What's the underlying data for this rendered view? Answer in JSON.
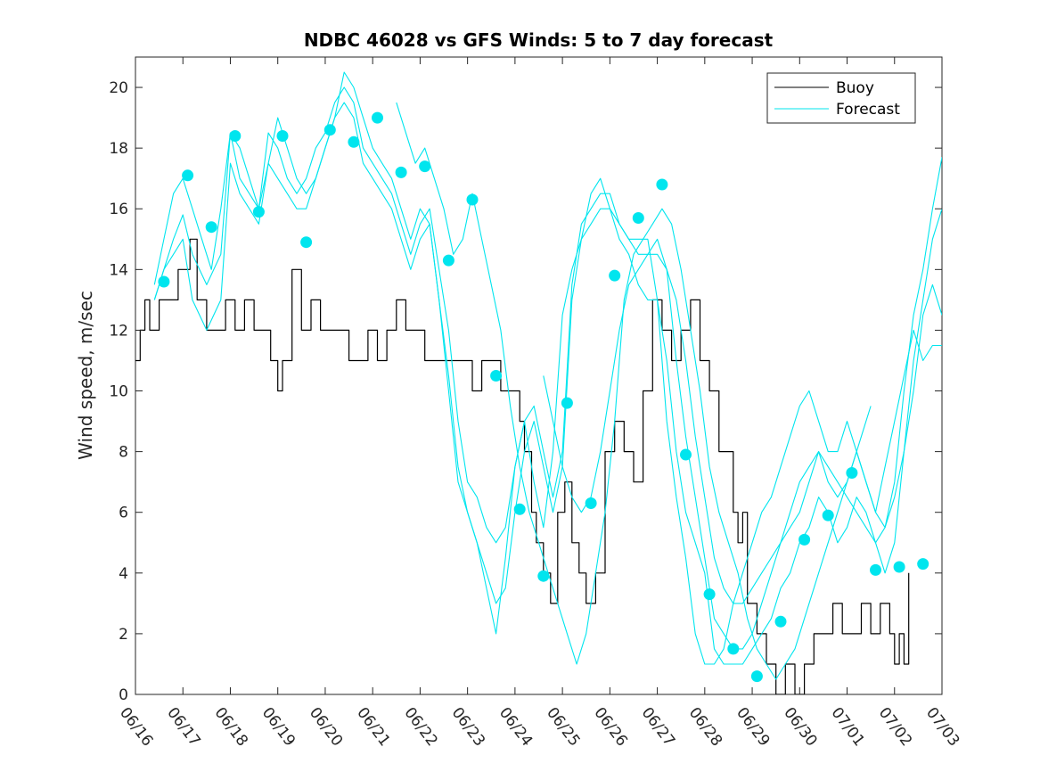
{
  "chart_data": {
    "type": "line",
    "title": "NDBC 46028 vs GFS Winds: 5 to 7 day forecast",
    "xlabel": "",
    "ylabel": "Wind speed, m/sec",
    "xlim": [
      0,
      17
    ],
    "ylim": [
      0,
      21
    ],
    "x_tick_labels": [
      "06/16",
      "06/17",
      "06/18",
      "06/19",
      "06/20",
      "06/21",
      "06/22",
      "06/23",
      "06/24",
      "06/25",
      "06/26",
      "06/27",
      "06/28",
      "06/29",
      "06/30",
      "07/01",
      "07/02",
      "07/03"
    ],
    "y_ticks": [
      0,
      2,
      4,
      6,
      8,
      10,
      12,
      14,
      16,
      18,
      20
    ],
    "y_tick_labels": [
      "0",
      "2",
      "4",
      "6",
      "8",
      "10",
      "12",
      "14",
      "16",
      "18",
      "20"
    ],
    "grid": false,
    "legend": {
      "position": "top-right",
      "entries": [
        {
          "label": "Buoy",
          "color": "#000000"
        },
        {
          "label": "Forecast",
          "color": "#00e5ee"
        }
      ]
    },
    "colors": {
      "buoy": "#000000",
      "forecast": "#00e5ee",
      "markers": "#00e5ee"
    },
    "series": [
      {
        "name": "Buoy",
        "x": [
          0.0,
          0.1,
          0.2,
          0.3,
          0.5,
          0.7,
          0.9,
          1.05,
          1.15,
          1.3,
          1.5,
          1.7,
          1.9,
          2.1,
          2.3,
          2.5,
          2.7,
          2.85,
          3.0,
          3.1,
          3.3,
          3.5,
          3.7,
          3.9,
          4.1,
          4.3,
          4.5,
          4.7,
          4.9,
          5.1,
          5.3,
          5.5,
          5.7,
          5.9,
          6.1,
          6.3,
          6.5,
          6.7,
          6.9,
          7.1,
          7.3,
          7.5,
          7.7,
          7.9,
          8.1,
          8.2,
          8.35,
          8.45,
          8.6,
          8.75,
          8.9,
          9.05,
          9.2,
          9.35,
          9.5,
          9.7,
          9.9,
          10.1,
          10.3,
          10.5,
          10.7,
          10.9,
          11.1,
          11.3,
          11.5,
          11.7,
          11.9,
          12.1,
          12.3,
          12.5,
          12.6,
          12.7,
          12.8,
          12.9,
          13.1,
          13.3,
          13.5,
          13.7,
          13.9,
          14.1,
          14.3,
          14.5,
          14.7,
          14.9,
          15.1,
          15.3,
          15.5,
          15.7,
          15.9,
          16.0,
          16.1,
          16.2,
          16.3
        ],
        "y": [
          11,
          12,
          13,
          12,
          13,
          13,
          14,
          14,
          15,
          13,
          12,
          12,
          13,
          12,
          13,
          12,
          12,
          11,
          10,
          11,
          14,
          12,
          13,
          12,
          12,
          12,
          11,
          11,
          12,
          11,
          12,
          13,
          12,
          12,
          11,
          11,
          11,
          11,
          11,
          10,
          11,
          11,
          10,
          10,
          9,
          8,
          6,
          5,
          4,
          3,
          6,
          7,
          5,
          4,
          3,
          4,
          8,
          9,
          8,
          7,
          10,
          13,
          12,
          11,
          12,
          13,
          11,
          10,
          8,
          8,
          6,
          5,
          6,
          3,
          2,
          1,
          0,
          1,
          0,
          1,
          2,
          2,
          3,
          2,
          2,
          3,
          2,
          3,
          2,
          1,
          2,
          1,
          4
        ]
      },
      {
        "name": "",
        "x": [
          0.4,
          0.6,
          0.8,
          1.0,
          1.2,
          1.5,
          1.8,
          2.0,
          2.2,
          2.4,
          2.6,
          2.8,
          3.0,
          3.2,
          3.4,
          3.6,
          3.8,
          4.0,
          4.2,
          4.4,
          4.6,
          4.8,
          5.0,
          5.2,
          5.4,
          5.6,
          5.8,
          6.0,
          6.2,
          6.4,
          6.6,
          6.8,
          7.0,
          7.2,
          7.4,
          7.6,
          7.8,
          8.0,
          8.2,
          8.4,
          8.6,
          8.8,
          9.0,
          9.2,
          9.4,
          9.6,
          9.8,
          10.0,
          10.2,
          10.4,
          10.6,
          10.8,
          11.0,
          11.2,
          11.4,
          11.6,
          11.8,
          12.0,
          12.2,
          12.4,
          12.6,
          12.8,
          13.0,
          13.2,
          13.4,
          13.6,
          13.8,
          14.0,
          14.2,
          14.4,
          14.6,
          14.8,
          15.0,
          15.2,
          15.4,
          15.6,
          15.8,
          16.0,
          16.2,
          16.4,
          16.6,
          16.8,
          17.0
        ],
        "y": [
          13.0,
          14.0,
          15.0,
          15.8,
          14.5,
          13.5,
          14.5,
          18.5,
          17.0,
          16.5,
          16.0,
          18.5,
          18.0,
          17.0,
          16.5,
          17.0,
          18.0,
          18.5,
          19.5,
          20.0,
          19.5,
          18.0,
          17.5,
          17.0,
          16.5,
          15.5,
          14.5,
          15.5,
          16.0,
          14.0,
          12.0,
          9.0,
          7.0,
          6.5,
          5.5,
          5.0,
          5.5,
          7.5,
          9.0,
          9.5,
          8.0,
          6.5,
          8.0,
          13.5,
          15.5,
          16.0,
          16.5,
          16.5,
          15.5,
          15.0,
          14.5,
          14.5,
          15.0,
          14.0,
          11.0,
          8.5,
          6.5,
          4.5,
          2.5,
          2.0,
          1.5,
          1.5,
          2.0,
          3.0,
          4.0,
          5.0,
          5.5,
          6.0,
          7.0,
          8.0,
          7.0,
          6.5,
          7.0,
          8.0,
          7.0,
          6.0,
          5.5,
          7.0,
          10.0,
          12.5,
          14.0,
          16.0,
          17.7
        ]
      },
      {
        "name": "",
        "x": [
          0.4,
          0.6,
          0.8,
          1.0,
          1.2,
          1.5,
          1.8,
          2.0,
          2.2,
          2.4,
          2.6,
          2.8,
          3.0,
          3.2,
          3.4,
          3.6,
          3.8,
          4.0,
          4.2,
          4.4,
          4.6,
          4.8,
          5.0,
          5.2,
          5.4,
          5.6,
          5.8,
          6.0,
          6.2,
          6.4,
          6.6,
          6.8,
          7.0,
          7.2,
          7.4,
          7.6,
          7.8,
          8.0,
          8.2,
          8.4,
          8.6,
          8.8,
          9.0,
          9.2,
          9.4,
          9.6,
          9.8,
          10.0,
          10.2,
          10.4,
          10.6,
          10.8,
          11.0,
          11.2,
          11.4,
          11.6,
          11.8,
          12.0,
          12.2,
          12.4,
          12.6,
          12.8,
          13.0,
          13.2,
          13.4,
          13.6,
          13.8,
          14.0,
          14.2,
          14.4,
          14.6,
          14.8,
          15.0,
          15.2,
          15.4,
          15.6,
          15.8,
          16.0,
          16.2,
          16.4,
          16.6,
          16.8,
          17.0
        ],
        "y": [
          13.0,
          14.0,
          14.5,
          15.0,
          13.0,
          12.0,
          13.0,
          17.5,
          16.5,
          16.0,
          15.5,
          17.5,
          17.0,
          16.5,
          16.0,
          16.0,
          17.0,
          18.0,
          19.0,
          19.5,
          19.0,
          17.5,
          17.0,
          16.5,
          16.0,
          15.0,
          14.0,
          15.0,
          15.5,
          13.0,
          10.5,
          7.5,
          6.0,
          5.0,
          4.0,
          3.0,
          3.5,
          6.0,
          8.0,
          9.0,
          7.5,
          6.0,
          7.5,
          13.0,
          15.0,
          15.5,
          16.0,
          16.0,
          15.0,
          14.5,
          13.5,
          13.0,
          13.0,
          11.0,
          8.0,
          6.0,
          5.0,
          4.0,
          1.5,
          1.0,
          1.0,
          1.0,
          1.5,
          2.0,
          2.5,
          3.5,
          4.0,
          5.0,
          5.5,
          6.5,
          6.0,
          5.0,
          5.5,
          6.5,
          6.0,
          5.0,
          4.0,
          5.0,
          8.0,
          11.0,
          13.0,
          15.0,
          16.0
        ]
      },
      {
        "name": "",
        "x": [
          5.5,
          5.7,
          5.9,
          6.1,
          6.3,
          6.5,
          6.7,
          6.9,
          7.1,
          7.3,
          7.5,
          7.7,
          7.9,
          8.1,
          8.3,
          8.5,
          8.7,
          8.9,
          9.1,
          9.3,
          9.5,
          9.7,
          9.9,
          10.1,
          10.3,
          10.5,
          10.7,
          10.9,
          11.1,
          11.3,
          11.5,
          11.7,
          11.9,
          12.1,
          12.3,
          12.5,
          12.7,
          12.9,
          13.1,
          13.3,
          13.5,
          13.7,
          13.9,
          14.1,
          14.3,
          14.5,
          14.7,
          14.9,
          15.1,
          15.3,
          15.5
        ],
        "y": [
          19.5,
          18.5,
          17.5,
          18.0,
          17.0,
          16.0,
          14.5,
          15.0,
          16.5,
          15.0,
          13.5,
          12.0,
          9.5,
          7.5,
          6.0,
          5.0,
          4.0,
          3.0,
          2.0,
          1.0,
          2.0,
          4.0,
          6.0,
          9.0,
          13.0,
          14.5,
          15.0,
          15.5,
          16.0,
          15.5,
          14.0,
          12.0,
          10.0,
          7.5,
          6.0,
          5.0,
          4.0,
          2.5,
          1.5,
          1.0,
          0.5,
          1.0,
          1.5,
          2.5,
          3.5,
          4.5,
          5.5,
          6.5,
          7.5,
          8.5,
          9.5
        ]
      },
      {
        "name": "",
        "x": [
          0.4,
          0.6,
          0.8,
          1.0,
          1.2,
          1.4,
          1.6,
          1.8,
          2.0,
          2.2,
          2.4,
          2.6,
          2.8,
          3.0,
          3.2,
          3.4,
          3.6,
          3.8,
          4.0,
          4.2,
          4.4,
          4.6,
          4.8,
          5.0,
          5.2,
          5.4,
          5.6,
          5.8,
          6.0,
          6.2,
          6.4,
          6.6,
          6.8,
          7.0,
          7.2,
          7.4,
          7.6,
          7.8,
          8.0,
          8.2,
          8.4,
          8.6,
          8.8,
          9.0,
          9.2,
          9.4,
          9.6,
          9.8,
          10.0,
          10.2,
          10.4,
          10.6,
          10.8,
          11.0,
          11.2,
          11.4,
          11.6,
          11.8,
          12.0,
          12.2,
          12.4,
          12.6,
          12.8,
          13.0,
          13.2,
          13.4,
          13.6,
          13.8,
          14.0,
          14.2,
          14.4,
          14.6,
          14.8,
          15.0,
          15.2,
          15.4,
          15.6,
          15.8,
          16.0,
          16.2,
          16.4,
          16.6,
          16.8,
          17.0
        ],
        "y": [
          13.5,
          15.0,
          16.5,
          17.0,
          16.0,
          15.0,
          14.0,
          16.0,
          18.5,
          18.0,
          17.0,
          16.0,
          17.5,
          19.0,
          18.0,
          17.0,
          16.5,
          17.0,
          18.0,
          19.0,
          20.5,
          20.0,
          19.0,
          18.0,
          17.5,
          17.0,
          16.0,
          15.0,
          16.0,
          15.5,
          13.0,
          10.0,
          7.0,
          6.0,
          5.0,
          3.5,
          2.0,
          4.5,
          7.5,
          9.0,
          7.0,
          5.5,
          8.0,
          12.5,
          14.0,
          15.0,
          16.5,
          17.0,
          16.0,
          15.5,
          15.0,
          15.0,
          15.0,
          13.0,
          9.0,
          6.5,
          4.5,
          2.0,
          1.0,
          1.0,
          1.5,
          3.0,
          4.0,
          5.0,
          6.0,
          6.5,
          7.5,
          8.5,
          9.5,
          10.0,
          9.0,
          8.0,
          8.0,
          9.0,
          8.0,
          7.0,
          6.0,
          7.5,
          9.0,
          10.5,
          12.0,
          11.0,
          11.5,
          11.5
        ]
      },
      {
        "name": "",
        "x": [
          8.6,
          8.8,
          9.0,
          9.2,
          9.4,
          9.6,
          9.8,
          10.0,
          10.2,
          10.4,
          10.6,
          10.8,
          11.0,
          11.2,
          11.4,
          11.6,
          11.8,
          12.0,
          12.2,
          12.4,
          12.6,
          12.8,
          13.0,
          13.2,
          13.4,
          13.6,
          13.8,
          14.0,
          14.2,
          14.4,
          14.6,
          14.8,
          15.0,
          15.2,
          15.4,
          15.6,
          15.8,
          16.0,
          16.2,
          16.4,
          16.6,
          16.8,
          17.0
        ],
        "y": [
          10.5,
          9.0,
          7.5,
          6.5,
          6.0,
          6.5,
          8.0,
          10.0,
          12.0,
          13.5,
          14.0,
          14.5,
          14.5,
          14.0,
          13.0,
          11.0,
          8.5,
          6.5,
          4.5,
          3.5,
          3.0,
          3.0,
          3.5,
          4.0,
          4.5,
          5.0,
          6.0,
          7.0,
          7.5,
          8.0,
          7.5,
          7.0,
          6.5,
          6.0,
          5.5,
          5.0,
          5.5,
          6.5,
          8.0,
          10.0,
          12.5,
          13.5,
          12.5
        ]
      }
    ],
    "markers": {
      "x": [
        0.6,
        1.1,
        1.6,
        2.1,
        2.6,
        3.1,
        3.6,
        4.1,
        4.6,
        5.1,
        5.6,
        6.1,
        6.6,
        7.1,
        7.6,
        8.1,
        8.6,
        9.1,
        9.6,
        10.1,
        10.6,
        11.1,
        11.6,
        12.1,
        12.6,
        13.1,
        13.6,
        14.1,
        14.6,
        15.1,
        15.6,
        16.1,
        16.6
      ],
      "y": [
        13.6,
        17.1,
        15.4,
        18.4,
        15.9,
        18.4,
        14.9,
        18.6,
        18.2,
        19.0,
        17.2,
        17.4,
        14.3,
        16.3,
        10.5,
        6.1,
        3.9,
        9.6,
        6.3,
        13.8,
        15.7,
        16.8,
        7.9,
        3.3,
        1.5,
        0.6,
        2.4,
        5.1,
        5.9,
        7.3,
        4.1,
        4.2,
        4.3
      ]
    }
  }
}
